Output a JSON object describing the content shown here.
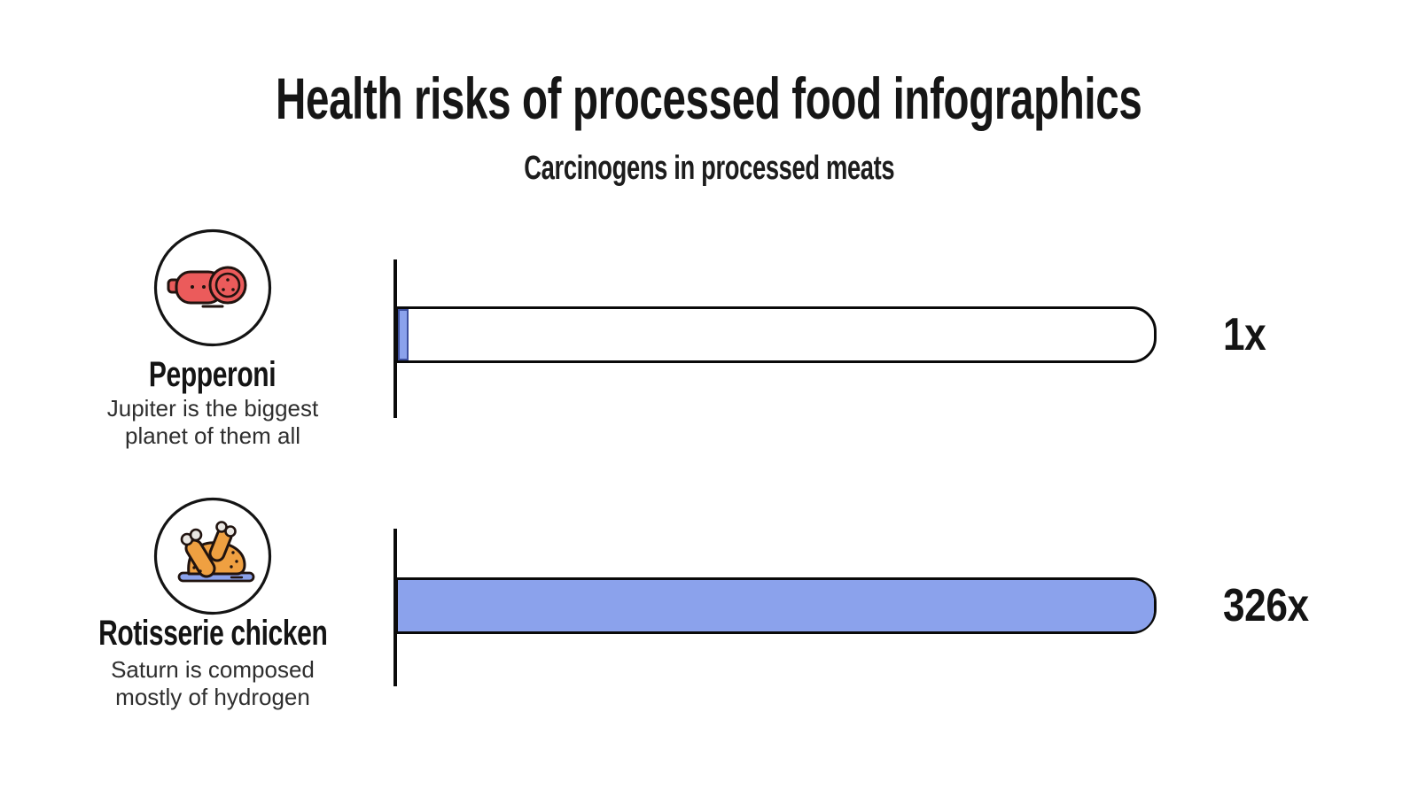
{
  "header": {
    "title": "Health risks of processed food infographics",
    "subtitle": "Carcinogens in processed meats"
  },
  "chart_data": {
    "type": "bar",
    "orientation": "horizontal",
    "title": "Health risks of processed food infographics",
    "subtitle": "Carcinogens in processed meats",
    "categories": [
      "Pepperoni",
      "Rotisserie chicken"
    ],
    "values": [
      1,
      326
    ],
    "value_labels": [
      "1x",
      "326x"
    ],
    "descriptions": [
      "Jupiter is the biggest planet of them all",
      "Saturn is composed mostly of hydrogen"
    ],
    "max_value": 326,
    "xlim": [
      0,
      326
    ],
    "grid": false,
    "legend": "none",
    "bar_fill_color": "#8BA2EC",
    "bar_track_color": "#FFFFFF",
    "bar_border_color": "#0A0A0A"
  },
  "rows": [
    {
      "label": "Pepperoni",
      "description": "Jupiter is the biggest planet of them all",
      "value": 1,
      "value_label": "1x",
      "icon": "pepperoni-icon",
      "fill_percent": 1.4
    },
    {
      "label": "Rotisserie chicken",
      "description": "Saturn is composed mostly of hydrogen",
      "value": 326,
      "value_label": "326x",
      "icon": "roast-chicken-icon",
      "fill_percent": 100
    }
  ],
  "colors": {
    "accent_blue": "#8BA2EC",
    "strip_border_navy": "#3D4F9E",
    "pepperoni_red": "#EB5B5B",
    "chicken_orange": "#EFA041",
    "bone_light": "#E9E6E2",
    "icon_outline": "#20130F",
    "text": "#1B1B1B"
  }
}
